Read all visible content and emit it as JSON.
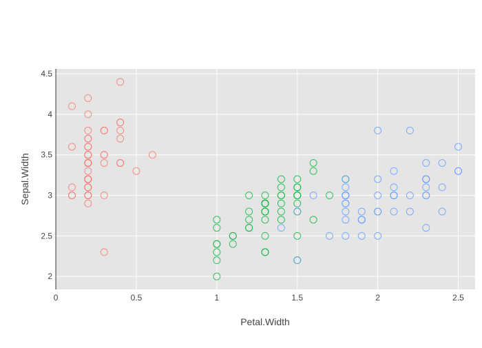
{
  "chart_data": {
    "type": "scatter",
    "title": "",
    "xlabel": "Petal.Width",
    "ylabel": "Sepal.Width",
    "xlim": [
      -0.0048,
      2.6048
    ],
    "ylim": [
      1.84,
      4.56
    ],
    "x_ticks": [
      0,
      0.5,
      1,
      1.5,
      2,
      2.5
    ],
    "x_tick_labels": [
      "0",
      "0.5",
      "1",
      "1.5",
      "2",
      "2.5"
    ],
    "y_ticks": [
      2,
      2.5,
      3,
      3.5,
      4,
      4.5
    ],
    "y_tick_labels": [
      "2",
      "2.5",
      "3",
      "3.5",
      "4",
      "4.5"
    ],
    "grid": true,
    "legend": "none",
    "background": "#e5e5e5",
    "grid_color": "#ffffff",
    "series": [
      {
        "color": "#f8766d",
        "points": [
          [
            0.2,
            3.5
          ],
          [
            0.2,
            3.0
          ],
          [
            0.2,
            3.2
          ],
          [
            0.2,
            3.1
          ],
          [
            0.2,
            3.6
          ],
          [
            0.4,
            3.9
          ],
          [
            0.3,
            3.4
          ],
          [
            0.2,
            3.4
          ],
          [
            0.2,
            2.9
          ],
          [
            0.1,
            3.1
          ],
          [
            0.2,
            3.7
          ],
          [
            0.2,
            3.4
          ],
          [
            0.1,
            3.0
          ],
          [
            0.1,
            3.0
          ],
          [
            0.2,
            4.0
          ],
          [
            0.4,
            4.4
          ],
          [
            0.4,
            3.9
          ],
          [
            0.3,
            3.5
          ],
          [
            0.3,
            3.8
          ],
          [
            0.3,
            3.8
          ],
          [
            0.2,
            3.4
          ],
          [
            0.4,
            3.7
          ],
          [
            0.2,
            3.6
          ],
          [
            0.5,
            3.3
          ],
          [
            0.2,
            3.4
          ],
          [
            0.2,
            3.0
          ],
          [
            0.4,
            3.4
          ],
          [
            0.2,
            3.5
          ],
          [
            0.2,
            3.4
          ],
          [
            0.2,
            3.2
          ],
          [
            0.2,
            3.1
          ],
          [
            0.4,
            3.4
          ],
          [
            0.1,
            4.1
          ],
          [
            0.2,
            4.2
          ],
          [
            0.2,
            3.1
          ],
          [
            0.2,
            3.2
          ],
          [
            0.2,
            3.5
          ],
          [
            0.1,
            3.6
          ],
          [
            0.2,
            3.0
          ],
          [
            0.2,
            3.4
          ],
          [
            0.3,
            3.5
          ],
          [
            0.3,
            2.3
          ],
          [
            0.2,
            3.2
          ],
          [
            0.6,
            3.5
          ],
          [
            0.4,
            3.8
          ],
          [
            0.3,
            3.0
          ],
          [
            0.2,
            3.8
          ],
          [
            0.2,
            3.2
          ],
          [
            0.2,
            3.7
          ],
          [
            0.2,
            3.3
          ]
        ]
      },
      {
        "color": "#00ba38",
        "points": [
          [
            1.4,
            3.2
          ],
          [
            1.5,
            3.2
          ],
          [
            1.5,
            3.1
          ],
          [
            1.3,
            2.3
          ],
          [
            1.5,
            2.8
          ],
          [
            1.3,
            2.8
          ],
          [
            1.6,
            3.3
          ],
          [
            1.0,
            2.4
          ],
          [
            1.3,
            2.9
          ],
          [
            1.4,
            2.7
          ],
          [
            1.0,
            2.0
          ],
          [
            1.5,
            3.0
          ],
          [
            1.0,
            2.2
          ],
          [
            1.4,
            2.9
          ],
          [
            1.3,
            2.9
          ],
          [
            1.4,
            3.1
          ],
          [
            1.5,
            3.0
          ],
          [
            1.0,
            2.7
          ],
          [
            1.5,
            2.2
          ],
          [
            1.1,
            2.5
          ],
          [
            1.8,
            3.2
          ],
          [
            1.3,
            2.8
          ],
          [
            1.5,
            2.5
          ],
          [
            1.2,
            2.8
          ],
          [
            1.3,
            2.9
          ],
          [
            1.4,
            3.0
          ],
          [
            1.4,
            2.8
          ],
          [
            1.7,
            3.0
          ],
          [
            1.5,
            2.9
          ],
          [
            1.0,
            2.6
          ],
          [
            1.1,
            2.4
          ],
          [
            1.0,
            2.4
          ],
          [
            1.2,
            2.7
          ],
          [
            1.6,
            2.7
          ],
          [
            1.5,
            3.0
          ],
          [
            1.6,
            3.4
          ],
          [
            1.5,
            3.1
          ],
          [
            1.3,
            2.3
          ],
          [
            1.3,
            3.0
          ],
          [
            1.3,
            2.5
          ],
          [
            1.2,
            2.6
          ],
          [
            1.4,
            3.0
          ],
          [
            1.2,
            2.6
          ],
          [
            1.0,
            2.3
          ],
          [
            1.3,
            2.7
          ],
          [
            1.2,
            3.0
          ],
          [
            1.3,
            2.9
          ],
          [
            1.3,
            2.9
          ],
          [
            1.1,
            2.5
          ],
          [
            1.3,
            2.8
          ]
        ]
      },
      {
        "color": "#619cff",
        "points": [
          [
            2.5,
            3.3
          ],
          [
            1.9,
            2.7
          ],
          [
            2.1,
            3.0
          ],
          [
            1.8,
            2.9
          ],
          [
            2.2,
            3.0
          ],
          [
            2.1,
            3.0
          ],
          [
            1.7,
            2.5
          ],
          [
            1.8,
            2.9
          ],
          [
            1.8,
            2.5
          ],
          [
            2.5,
            3.6
          ],
          [
            2.0,
            3.2
          ],
          [
            1.9,
            2.7
          ],
          [
            2.1,
            3.0
          ],
          [
            2.0,
            2.5
          ],
          [
            2.4,
            2.8
          ],
          [
            2.3,
            3.2
          ],
          [
            1.8,
            3.0
          ],
          [
            2.2,
            3.8
          ],
          [
            2.3,
            2.6
          ],
          [
            1.5,
            2.2
          ],
          [
            2.3,
            3.2
          ],
          [
            2.0,
            2.8
          ],
          [
            2.0,
            2.8
          ],
          [
            1.8,
            2.7
          ],
          [
            2.1,
            3.3
          ],
          [
            1.8,
            3.2
          ],
          [
            1.8,
            2.8
          ],
          [
            1.8,
            3.0
          ],
          [
            2.1,
            2.8
          ],
          [
            1.6,
            3.0
          ],
          [
            1.9,
            2.8
          ],
          [
            2.0,
            3.8
          ],
          [
            2.2,
            2.8
          ],
          [
            1.5,
            2.8
          ],
          [
            1.4,
            2.6
          ],
          [
            2.3,
            3.0
          ],
          [
            2.4,
            3.4
          ],
          [
            1.8,
            3.1
          ],
          [
            1.8,
            3.0
          ],
          [
            2.1,
            3.1
          ],
          [
            2.4,
            3.1
          ],
          [
            2.3,
            3.1
          ],
          [
            1.9,
            2.7
          ],
          [
            2.3,
            3.2
          ],
          [
            2.5,
            3.3
          ],
          [
            2.3,
            3.0
          ],
          [
            1.9,
            2.5
          ],
          [
            2.0,
            3.0
          ],
          [
            2.3,
            3.4
          ],
          [
            1.8,
            3.0
          ]
        ]
      }
    ]
  }
}
